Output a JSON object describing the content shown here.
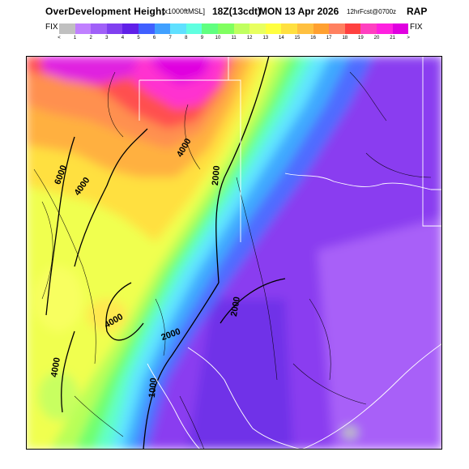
{
  "header": {
    "title": "OverDevelopment Height",
    "units": "[x1000ftMSL]",
    "valid_time": "18Z(13cdt)",
    "date": "MON 13 Apr 2026",
    "forecast": "12hrFcst@0700z",
    "model": "RAP",
    "fix_left": "FIX",
    "fix_right": "FIX"
  },
  "legend": {
    "under_symbol": "<",
    "over_symbol": ">",
    "labels": [
      "1",
      "2",
      "3",
      "4",
      "5",
      "6",
      "7",
      "8",
      "9",
      "10",
      "11",
      "12",
      "13",
      "14",
      "15",
      "16",
      "17",
      "18",
      "19",
      "20",
      "21"
    ],
    "colors": [
      "#c0c0c0",
      "#c080ff",
      "#a060f8",
      "#8040f0",
      "#6020e8",
      "#4060ff",
      "#40a0ff",
      "#60e0ff",
      "#60ffe0",
      "#60ff80",
      "#80ff60",
      "#c0ff60",
      "#e8ff60",
      "#ffff40",
      "#ffe040",
      "#ffc040",
      "#ffa030",
      "#ff8060",
      "#ff4040",
      "#ff40c0",
      "#ff20e0",
      "#e000e0"
    ]
  },
  "contour_labels": [
    "6000",
    "4000",
    "4000",
    "2000",
    "2000",
    "2000",
    "4000",
    "4000",
    "1000"
  ]
}
